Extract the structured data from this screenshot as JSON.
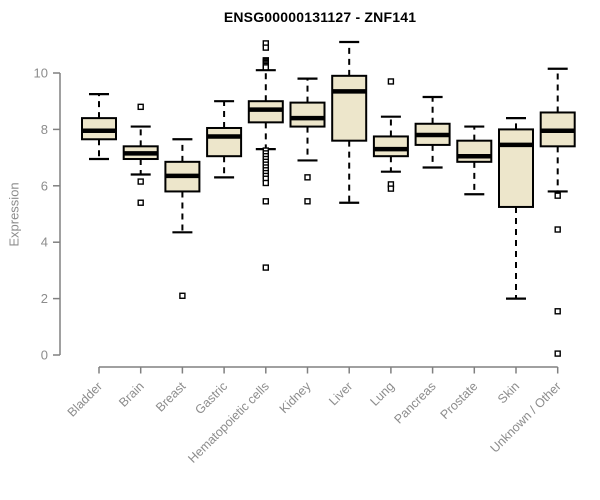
{
  "colors": {
    "background": "#ffffff",
    "box_fill": "#ede6cb",
    "box_border": "#000000",
    "median": "#000000",
    "whisker": "#000000",
    "outlier_stroke": "#000000",
    "outlier_fill": "#ffffff",
    "axis": "#808080",
    "labels": "#8c8c8c",
    "title": "#000000"
  },
  "chart_data": {
    "type": "boxplot",
    "title": "ENSG00000131127 - ZNF141",
    "ylabel": "Expression",
    "xlabel": "",
    "yticks": [
      0,
      2,
      4,
      6,
      8,
      10
    ],
    "ylim": [
      -0.4,
      11.4
    ],
    "grid": false,
    "legend": false,
    "categories": [
      "Bladder",
      "Brain",
      "Breast",
      "Gastric",
      "Hematopoietic cells",
      "Kidney",
      "Liver",
      "Lung",
      "Pancreas",
      "Prostate",
      "Skin",
      "Unknown / Other"
    ],
    "series": [
      {
        "category": "Bladder",
        "whisker_low": 6.95,
        "q1": 7.65,
        "median": 7.95,
        "q3": 8.4,
        "whisker_high": 9.25,
        "outliers": []
      },
      {
        "category": "Brain",
        "whisker_low": 6.4,
        "q1": 6.95,
        "median": 7.15,
        "q3": 7.4,
        "whisker_high": 8.1,
        "outliers": [
          8.8,
          6.15,
          5.4
        ]
      },
      {
        "category": "Breast",
        "whisker_low": 4.35,
        "q1": 5.8,
        "median": 6.35,
        "q3": 6.85,
        "whisker_high": 7.65,
        "outliers": [
          2.1
        ]
      },
      {
        "category": "Gastric",
        "whisker_low": 6.3,
        "q1": 7.05,
        "median": 7.75,
        "q3": 8.05,
        "whisker_high": 9.0,
        "outliers": []
      },
      {
        "category": "Hematopoietic cells",
        "whisker_low": 7.3,
        "q1": 8.25,
        "median": 8.7,
        "q3": 9.0,
        "whisker_high": 10.1,
        "outliers": [
          11.05,
          10.9,
          10.45,
          10.4,
          10.35,
          10.3,
          10.25,
          10.2,
          7.25,
          7.15,
          7.05,
          6.95,
          6.85,
          6.75,
          6.65,
          6.55,
          6.45,
          6.35,
          6.25,
          6.1,
          5.45,
          3.1
        ]
      },
      {
        "category": "Kidney",
        "whisker_low": 6.9,
        "q1": 8.1,
        "median": 8.4,
        "q3": 8.95,
        "whisker_high": 9.8,
        "outliers": [
          6.3,
          5.45
        ]
      },
      {
        "category": "Liver",
        "whisker_low": 5.4,
        "q1": 7.6,
        "median": 9.35,
        "q3": 9.9,
        "whisker_high": 11.1,
        "outliers": []
      },
      {
        "category": "Lung",
        "whisker_low": 6.5,
        "q1": 7.05,
        "median": 7.3,
        "q3": 7.75,
        "whisker_high": 8.45,
        "outliers": [
          9.7,
          6.05,
          5.9
        ]
      },
      {
        "category": "Pancreas",
        "whisker_low": 6.65,
        "q1": 7.45,
        "median": 7.8,
        "q3": 8.2,
        "whisker_high": 9.15,
        "outliers": []
      },
      {
        "category": "Prostate",
        "whisker_low": 5.7,
        "q1": 6.85,
        "median": 7.05,
        "q3": 7.6,
        "whisker_high": 8.1,
        "outliers": []
      },
      {
        "category": "Skin",
        "whisker_low": 2.0,
        "q1": 5.25,
        "median": 7.45,
        "q3": 8.0,
        "whisker_high": 8.4,
        "outliers": []
      },
      {
        "category": "Unknown / Other",
        "whisker_low": 5.8,
        "q1": 7.4,
        "median": 7.95,
        "q3": 8.6,
        "whisker_high": 10.15,
        "outliers": [
          5.65,
          4.45,
          1.55,
          0.05
        ]
      }
    ]
  }
}
